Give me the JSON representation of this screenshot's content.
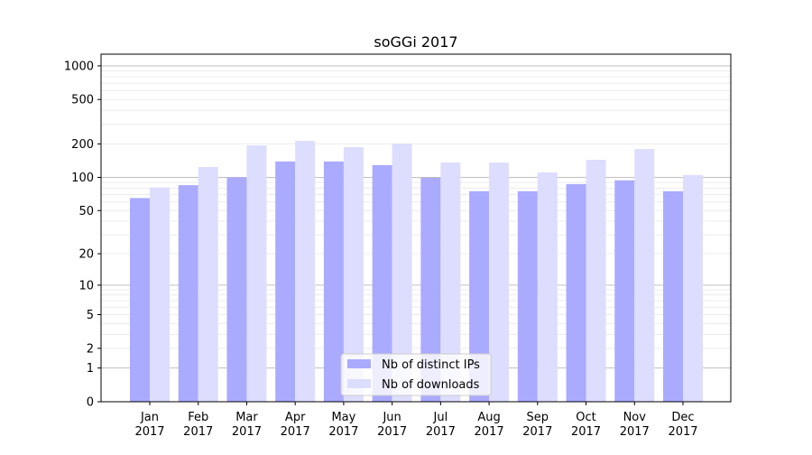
{
  "chart_data": {
    "type": "bar",
    "title": "soGGi 2017",
    "xlabel": "",
    "ylabel": "",
    "yscale": "symlog",
    "ylim": [
      0,
      1300
    ],
    "yticks": [
      0,
      1,
      2,
      5,
      10,
      20,
      50,
      100,
      200,
      500,
      1000
    ],
    "grid": true,
    "legend_position": "bottom-center",
    "categories": [
      "Jan\n2017",
      "Feb\n2017",
      "Mar\n2017",
      "Apr\n2017",
      "May\n2017",
      "Jun\n2017",
      "Jul\n2017",
      "Aug\n2017",
      "Sep\n2017",
      "Oct\n2017",
      "Nov\n2017",
      "Dec\n2017"
    ],
    "series": [
      {
        "name": "Nb of distinct IPs",
        "color": "#aaaaff",
        "values": [
          65,
          85,
          100,
          139,
          139,
          129,
          99,
          75,
          75,
          87,
          94,
          75
        ]
      },
      {
        "name": "Nb of downloads",
        "color": "#ddddff",
        "values": [
          81,
          124,
          194,
          213,
          187,
          201,
          136,
          136,
          111,
          144,
          180,
          105
        ]
      }
    ]
  }
}
